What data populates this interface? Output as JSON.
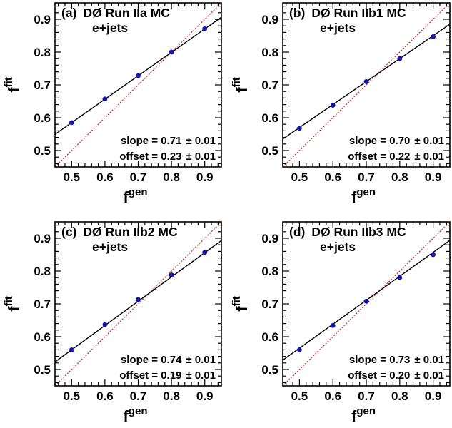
{
  "chart_data": [
    {
      "type": "scatter",
      "panel": "(a)",
      "title": "DØ Run IIa MC",
      "subtitle": "e+jets",
      "xlabel": "f",
      "xlabel_sup": "gen",
      "ylabel": "f",
      "ylabel_sup": "fit",
      "xlim": [
        0.45,
        0.95
      ],
      "ylim": [
        0.45,
        0.95
      ],
      "xticks": [
        "0.5",
        "0.6",
        "0.7",
        "0.8",
        "0.9"
      ],
      "yticks": [
        "0.5",
        "0.6",
        "0.7",
        "0.8",
        "0.9"
      ],
      "x": [
        0.5,
        0.6,
        0.7,
        0.8,
        0.9
      ],
      "y": [
        0.585,
        0.657,
        0.728,
        0.8,
        0.871
      ],
      "fit": {
        "slope": 0.714,
        "offset": 0.228
      },
      "reference_line": {
        "slope": 1,
        "offset": 0
      },
      "slope_label": "slope = 0.71",
      "slope_err": "± 0.01",
      "offset_label": "offset = 0.23",
      "offset_err": "± 0.01"
    },
    {
      "type": "scatter",
      "panel": "(b)",
      "title": "DØ Run IIb1 MC",
      "subtitle": "e+jets",
      "xlabel": "f",
      "xlabel_sup": "gen",
      "ylabel": "f",
      "ylabel_sup": "fit",
      "xlim": [
        0.45,
        0.95
      ],
      "ylim": [
        0.45,
        0.95
      ],
      "xticks": [
        "0.5",
        "0.6",
        "0.7",
        "0.8",
        "0.9"
      ],
      "yticks": [
        "0.5",
        "0.6",
        "0.7",
        "0.8",
        "0.9"
      ],
      "x": [
        0.5,
        0.6,
        0.7,
        0.8,
        0.9
      ],
      "y": [
        0.568,
        0.638,
        0.71,
        0.78,
        0.847
      ],
      "fit": {
        "slope": 0.7,
        "offset": 0.22
      },
      "reference_line": {
        "slope": 1,
        "offset": 0
      },
      "slope_label": "slope = 0.70",
      "slope_err": "± 0.01",
      "offset_label": "offset = 0.22",
      "offset_err": "± 0.01"
    },
    {
      "type": "scatter",
      "panel": "(c)",
      "title": "DØ Run IIb2 MC",
      "subtitle": "e+jets",
      "xlabel": "f",
      "xlabel_sup": "gen",
      "ylabel": "f",
      "ylabel_sup": "fit",
      "xlim": [
        0.45,
        0.95
      ],
      "ylim": [
        0.45,
        0.95
      ],
      "xticks": [
        "0.5",
        "0.6",
        "0.7",
        "0.8",
        "0.9"
      ],
      "yticks": [
        "0.5",
        "0.6",
        "0.7",
        "0.8",
        "0.9"
      ],
      "x": [
        0.5,
        0.6,
        0.7,
        0.8,
        0.9
      ],
      "y": [
        0.56,
        0.637,
        0.713,
        0.788,
        0.857
      ],
      "fit": {
        "slope": 0.74,
        "offset": 0.19
      },
      "reference_line": {
        "slope": 1,
        "offset": 0
      },
      "slope_label": "slope = 0.74",
      "slope_err": "± 0.01",
      "offset_label": "offset = 0.19",
      "offset_err": "± 0.01"
    },
    {
      "type": "scatter",
      "panel": "(d)",
      "title": "DØ Run IIb3 MC",
      "subtitle": "e+jets",
      "xlabel": "f",
      "xlabel_sup": "gen",
      "ylabel": "f",
      "ylabel_sup": "fit",
      "xlim": [
        0.45,
        0.95
      ],
      "ylim": [
        0.45,
        0.95
      ],
      "xticks": [
        "0.5",
        "0.6",
        "0.7",
        "0.8",
        "0.9"
      ],
      "yticks": [
        "0.5",
        "0.6",
        "0.7",
        "0.8",
        "0.9"
      ],
      "x": [
        0.5,
        0.6,
        0.7,
        0.8,
        0.9
      ],
      "y": [
        0.56,
        0.634,
        0.708,
        0.78,
        0.85
      ],
      "fit": {
        "slope": 0.73,
        "offset": 0.2
      },
      "reference_line": {
        "slope": 1,
        "offset": 0
      },
      "slope_label": "slope = 0.73",
      "slope_err": "± 0.01",
      "offset_label": "offset = 0.20",
      "offset_err": "± 0.01"
    }
  ],
  "colors": {
    "points": "#1414b4",
    "fit_line": "#000000",
    "reference_line": "#e0201a",
    "frame": "#000000"
  }
}
